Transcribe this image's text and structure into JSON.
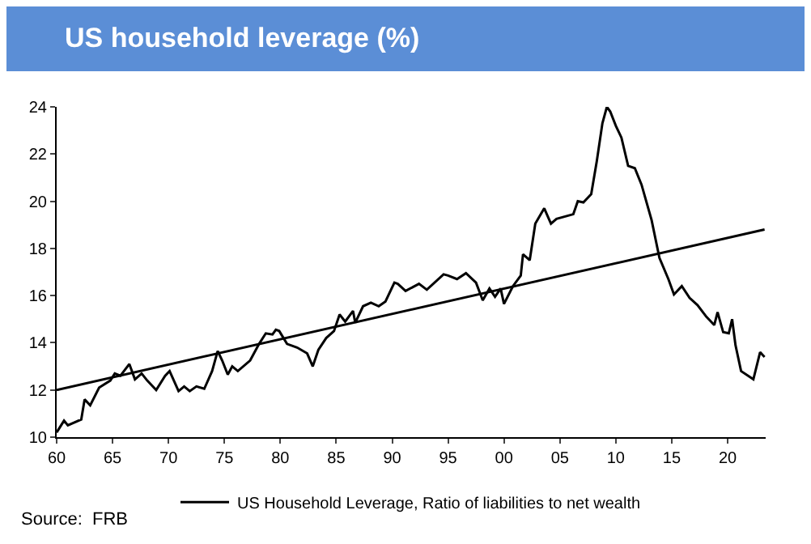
{
  "chart_data": {
    "type": "line",
    "title": "US household leverage (%)",
    "annotations": [
      "Source:  FRB"
    ],
    "xlim": [
      1960,
      2023.4
    ],
    "ylim": [
      10,
      24
    ],
    "xticks": [
      {
        "value": 1960,
        "label": "60"
      },
      {
        "value": 1965,
        "label": "65"
      },
      {
        "value": 1970,
        "label": "70"
      },
      {
        "value": 1975,
        "label": "75"
      },
      {
        "value": 1980,
        "label": "80"
      },
      {
        "value": 1985,
        "label": "85"
      },
      {
        "value": 1990,
        "label": "90"
      },
      {
        "value": 1995,
        "label": "95"
      },
      {
        "value": 2000,
        "label": "00"
      },
      {
        "value": 2005,
        "label": "05"
      },
      {
        "value": 2010,
        "label": "10"
      },
      {
        "value": 2015,
        "label": "15"
      },
      {
        "value": 2020,
        "label": "20"
      }
    ],
    "yticks": [
      10,
      12,
      14,
      16,
      18,
      20,
      22,
      24
    ],
    "grid": false,
    "legend": "bottom",
    "series": [
      {
        "name": "US Household Leverage, Ratio of liabilities to net wealth",
        "color": "#000000",
        "x": [
          1960.0,
          1960.66,
          1961.0,
          1962.2,
          1962.5,
          1963.0,
          1963.8,
          1964.8,
          1965.2,
          1965.7,
          1966.5,
          1967.0,
          1967.6,
          1968.1,
          1968.9,
          1969.7,
          1970.1,
          1970.9,
          1971.4,
          1971.9,
          1972.5,
          1973.2,
          1973.9,
          1974.4,
          1974.8,
          1975.3,
          1975.7,
          1976.2,
          1977.3,
          1978.1,
          1978.7,
          1979.3,
          1979.6,
          1979.9,
          1980.6,
          1981.5,
          1982.4,
          1982.9,
          1983.4,
          1984.1,
          1984.8,
          1985.3,
          1985.8,
          1986.5,
          1986.7,
          1987.4,
          1988.1,
          1988.8,
          1989.4,
          1990.2,
          1990.5,
          1991.2,
          1992.4,
          1993.1,
          1994.6,
          1995.0,
          1995.8,
          1996.6,
          1997.5,
          1998.1,
          1998.7,
          1999.2,
          1999.7,
          2000.0,
          2000.8,
          2001.5,
          2001.7,
          2002.3,
          2002.8,
          2003.6,
          2004.2,
          2004.7,
          2006.2,
          2006.6,
          2007.1,
          2007.8,
          2008.3,
          2008.8,
          2009.2,
          2009.5,
          2010.0,
          2010.5,
          2011.1,
          2011.7,
          2012.3,
          2013.2,
          2013.9,
          2014.7,
          2015.2,
          2015.9,
          2016.6,
          2017.3,
          2018.1,
          2018.8,
          2019.1,
          2019.6,
          2020.1,
          2020.4,
          2020.7,
          2021.2,
          2022.3,
          2022.9,
          2023.3
        ],
        "values": [
          10.2,
          10.7,
          10.5,
          10.75,
          11.6,
          11.35,
          12.1,
          12.4,
          12.7,
          12.6,
          13.1,
          12.45,
          12.7,
          12.4,
          12.0,
          12.6,
          12.8,
          11.95,
          12.15,
          11.95,
          12.15,
          12.05,
          12.8,
          13.65,
          13.25,
          12.65,
          13.0,
          12.8,
          13.25,
          13.95,
          14.4,
          14.35,
          14.55,
          14.5,
          13.95,
          13.8,
          13.55,
          13.0,
          13.7,
          14.2,
          14.5,
          15.2,
          14.9,
          15.35,
          14.85,
          15.55,
          15.7,
          15.55,
          15.75,
          16.55,
          16.5,
          16.2,
          16.5,
          16.25,
          16.9,
          16.85,
          16.7,
          16.95,
          16.55,
          15.8,
          16.3,
          15.95,
          16.3,
          15.65,
          16.4,
          16.85,
          17.75,
          17.5,
          19.05,
          19.7,
          19.05,
          19.25,
          19.45,
          20.0,
          19.95,
          20.3,
          21.7,
          23.3,
          24.0,
          23.8,
          23.2,
          22.7,
          21.5,
          21.4,
          20.7,
          19.2,
          17.6,
          16.7,
          16.05,
          16.4,
          15.9,
          15.6,
          15.1,
          14.75,
          15.3,
          14.45,
          14.4,
          15.0,
          13.9,
          12.8,
          12.45,
          13.6,
          13.4
        ]
      },
      {
        "color": "#000000",
        "x": [
          1960,
          2023.3
        ],
        "values": [
          12.0,
          18.8
        ]
      }
    ]
  }
}
